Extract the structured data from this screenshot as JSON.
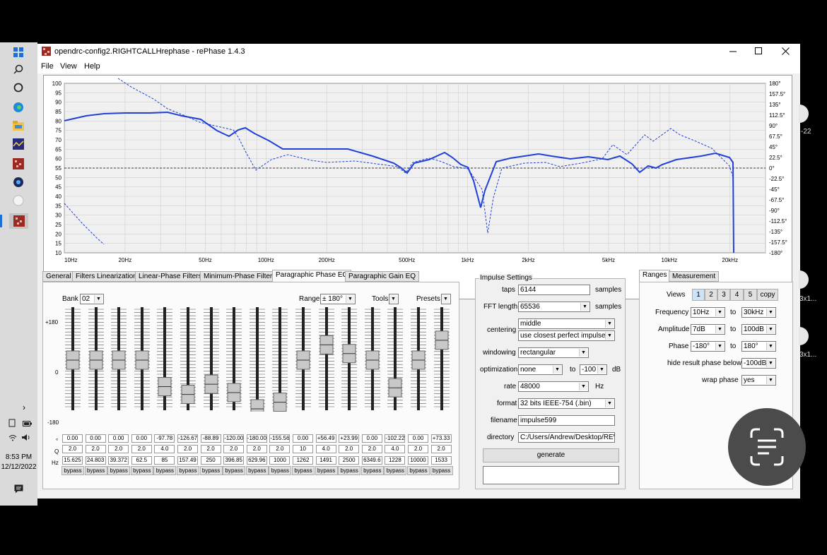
{
  "window": {
    "title": "opendrc-config2.RIGHTCALLHrephase  -  rePhase 1.4.3",
    "menu": [
      "File",
      "View",
      "Help"
    ]
  },
  "taskbar": {
    "time": "8:53 PM",
    "date": "12/12/2022",
    "icons": [
      "windows-icon",
      "search-icon",
      "cortana-icon",
      "edge-icon",
      "file-explorer-icon",
      "rew-icon",
      "rephase-icon",
      "app-icon",
      "app-icon",
      "rephase-active-icon"
    ]
  },
  "graph": {
    "left_axis": [
      "100",
      "95",
      "90",
      "85",
      "80",
      "75",
      "70",
      "65",
      "60",
      "55",
      "50",
      "45",
      "40",
      "35",
      "30",
      "25",
      "20",
      "15",
      "10"
    ],
    "right_axis": [
      "180°",
      "157.5°",
      "135°",
      "112.5°",
      "90°",
      "67.5°",
      "45°",
      "22.5°",
      "0°",
      "-22.5°",
      "-45°",
      "-67.5°",
      "-90°",
      "-112.5°",
      "-135°",
      "-157.5°",
      "-180°"
    ],
    "x_axis": [
      "10Hz",
      "20Hz",
      "50Hz",
      "100Hz",
      "200Hz",
      "500Hz",
      "1kHz",
      "2kHz",
      "5kHz",
      "10kHz",
      "20kHz"
    ],
    "colors": {
      "curve": "#2040d8",
      "grid": "#d0d0d0"
    }
  },
  "tabs": [
    "General",
    "Filters Linearization",
    "Linear-Phase Filters",
    "Minimum-Phase Filters",
    "Paragraphic Phase EQ",
    "Paragraphic Gain EQ"
  ],
  "active_tab": "Paragraphic Phase EQ",
  "eq": {
    "bank_label": "Bank",
    "bank_value": "02",
    "range_label": "Range",
    "range_value": "± 180°",
    "tools_label": "Tools",
    "presets_label": "Presets",
    "scale_top": "+180",
    "scale_mid": "0",
    "scale_bot": "-180",
    "row_labels": {
      "deg": "°",
      "q": "Q",
      "hz": "Hz"
    },
    "bypass_label": "bypass",
    "bands": [
      {
        "deg": "0.00",
        "q": "2.0",
        "hz": "15.625",
        "level": 0.5
      },
      {
        "deg": "0.00",
        "q": "2.0",
        "hz": "24.803",
        "level": 0.5
      },
      {
        "deg": "0.00",
        "q": "2.0",
        "hz": "39.372",
        "level": 0.5
      },
      {
        "deg": "0.00",
        "q": "2.0",
        "hz": "62.5",
        "level": 0.5
      },
      {
        "deg": "-97.78",
        "q": "4.0",
        "hz": "85",
        "level": 0.228
      },
      {
        "deg": "-126.67",
        "q": "2.0",
        "hz": "157.49",
        "level": 0.148
      },
      {
        "deg": "-88.89",
        "q": "2.0",
        "hz": "250",
        "level": 0.253
      },
      {
        "deg": "-120.00",
        "q": "2.0",
        "hz": "396.85",
        "level": 0.167
      },
      {
        "deg": "-180.00",
        "q": "2.0",
        "hz": "629.96",
        "level": 0.0
      },
      {
        "deg": "-155.56",
        "q": "2.0",
        "hz": "1000",
        "level": 0.068
      },
      {
        "deg": "0.00",
        "q": "10",
        "hz": "1262",
        "level": 0.5
      },
      {
        "deg": "+56.49",
        "q": "4.0",
        "hz": "1491",
        "level": 0.657
      },
      {
        "deg": "+23.99",
        "q": "2.0",
        "hz": "2500",
        "level": 0.567
      },
      {
        "deg": "0.00",
        "q": "2.0",
        "hz": "6349.6",
        "level": 0.5
      },
      {
        "deg": "-102.22",
        "q": "4.0",
        "hz": "1228",
        "level": 0.216
      },
      {
        "deg": "0.00",
        "q": "2.0",
        "hz": "10000",
        "level": 0.5
      },
      {
        "deg": "+73.33",
        "q": "2.0",
        "hz": "1533",
        "level": 0.704
      }
    ]
  },
  "impulse": {
    "title": "Impulse Settings",
    "taps_label": "taps",
    "taps_value": "6144",
    "taps_unit": "samples",
    "fft_label": "FFT length",
    "fft_value": "65536",
    "fft_unit": "samples",
    "centering_label": "centering",
    "centering_value": "middle",
    "centering_value2": "use closest perfect impulse",
    "windowing_label": "windowing",
    "windowing_value": "rectangular",
    "optimization_label": "optimization",
    "optimization_value": "none",
    "optimization_to": "to",
    "optimization_db": "-100",
    "optimization_unit": "dB",
    "rate_label": "rate",
    "rate_value": "48000",
    "rate_unit": "Hz",
    "format_label": "format",
    "format_value": "32 bits IEEE-754 (.bin)",
    "filename_label": "filename",
    "filename_value": "impulse599",
    "directory_label": "directory",
    "directory_value": "C:/Users/Andrew/Desktop/REW...",
    "generate_label": "generate"
  },
  "ranges": {
    "tabs": [
      "Ranges",
      "Measurement"
    ],
    "views_label": "Views",
    "views": [
      "1",
      "2",
      "3",
      "4",
      "5"
    ],
    "copy_label": "copy",
    "frequency_label": "Frequency",
    "frequency_from": "10Hz",
    "frequency_to": "30kHz",
    "amplitude_label": "Amplitude",
    "amplitude_from": "7dB",
    "amplitude_to": "100dB",
    "phase_label": "Phase",
    "phase_from": "-180°",
    "phase_to": "180°",
    "to_label": "to",
    "hide_label": "hide result phase below",
    "hide_value": "-100dB",
    "wrap_label": "wrap phase",
    "wrap_value": "yes"
  },
  "side_peek": [
    "-22",
    "3x1...",
    "3x1..."
  ]
}
